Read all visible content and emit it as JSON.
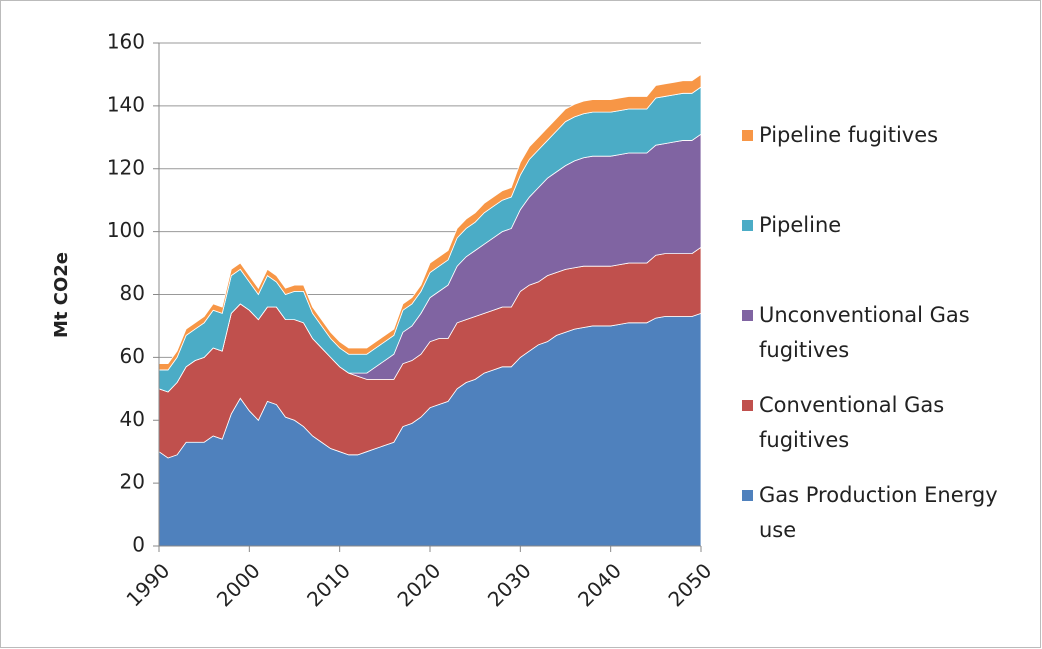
{
  "chart_data": {
    "type": "stacked-area",
    "ylabel": "Mt CO2e",
    "x": [
      1990,
      1991,
      1992,
      1993,
      1994,
      1995,
      1996,
      1997,
      1998,
      1999,
      2000,
      2001,
      2002,
      2003,
      2004,
      2005,
      2006,
      2007,
      2008,
      2009,
      2010,
      2011,
      2012,
      2013,
      2014,
      2015,
      2016,
      2017,
      2018,
      2019,
      2020,
      2021,
      2022,
      2023,
      2024,
      2025,
      2026,
      2027,
      2028,
      2029,
      2030,
      2031,
      2032,
      2033,
      2034,
      2035,
      2036,
      2037,
      2038,
      2039,
      2040,
      2041,
      2042,
      2043,
      2044,
      2045,
      2046,
      2047,
      2048,
      2049,
      2050
    ],
    "series": [
      {
        "name": "Gas Production Energy use",
        "color": "#4f81bd",
        "values": [
          30,
          28,
          29,
          33,
          33,
          33,
          35,
          34,
          42,
          47,
          43,
          40,
          46,
          45,
          41,
          40,
          38,
          35,
          33,
          31,
          30,
          29,
          29,
          30,
          31,
          32,
          33,
          38,
          39,
          41,
          44,
          45,
          46,
          50,
          52,
          53,
          55,
          56,
          57,
          57,
          60,
          62,
          64,
          65,
          67,
          68,
          69,
          69.5,
          70,
          70,
          70,
          70.5,
          71,
          71,
          71,
          72.5,
          73,
          73,
          73,
          73,
          74
        ]
      },
      {
        "name": "Conventional Gas fugitives",
        "color": "#c0504d",
        "values": [
          20,
          21,
          23,
          24,
          26,
          27,
          28,
          28,
          32,
          30,
          32,
          32,
          30,
          31,
          31,
          32,
          33,
          31,
          30,
          29,
          27,
          26,
          25,
          23,
          22,
          21,
          20,
          20,
          20,
          20,
          21,
          21,
          20,
          21,
          20,
          20,
          19,
          19,
          19,
          19,
          21,
          21,
          20,
          21,
          20,
          20,
          19.5,
          19.5,
          19,
          19,
          19,
          19,
          19,
          19,
          19,
          20,
          20,
          20,
          20,
          20,
          21
        ]
      },
      {
        "name": "Unconventional Gas fugitives",
        "color": "#8064a2",
        "values": [
          0,
          0,
          0,
          0,
          0,
          0,
          0,
          0,
          0,
          0,
          0,
          0,
          0,
          0,
          0,
          0,
          0,
          0,
          0,
          0,
          0,
          0,
          1,
          2,
          4,
          6,
          8,
          10,
          11,
          13,
          14,
          15,
          17,
          18,
          20,
          21,
          22,
          23,
          24,
          25,
          26,
          28,
          30,
          31,
          32,
          33,
          34,
          34.5,
          35,
          35,
          35,
          35,
          35,
          35,
          35,
          35,
          35,
          35.5,
          36,
          36,
          36
        ]
      },
      {
        "name": "Pipeline",
        "color": "#4bacc6",
        "values": [
          6,
          7,
          8,
          10,
          10,
          11,
          12,
          12,
          12,
          11,
          9,
          8,
          10,
          8,
          8,
          9,
          10,
          8,
          7,
          6,
          6,
          6,
          6,
          6,
          6,
          6,
          6,
          7,
          7,
          7,
          8,
          8,
          8,
          9,
          9,
          9,
          10,
          10,
          10,
          10,
          11,
          12,
          12,
          12,
          13,
          14,
          14,
          14,
          14,
          14,
          14,
          14,
          14,
          14,
          14,
          15,
          15,
          15,
          15,
          15,
          15
        ]
      },
      {
        "name": "Pipeline fugitives",
        "color": "#f79646",
        "values": [
          2,
          2,
          2,
          2,
          2,
          2,
          2,
          2,
          2,
          2,
          2,
          2,
          2,
          2,
          2,
          2,
          2,
          2,
          2,
          2,
          2,
          2,
          2,
          2,
          2,
          2,
          2,
          2,
          2,
          2,
          3,
          3,
          3,
          3,
          3,
          3,
          3,
          3,
          3,
          3,
          4,
          4,
          4,
          4,
          4,
          4,
          4,
          4,
          4,
          4,
          4,
          4,
          4,
          4,
          4,
          4,
          4,
          4,
          4,
          4,
          4
        ]
      }
    ],
    "xlim": [
      1990,
      2050
    ],
    "xticks": [
      1990,
      2000,
      2010,
      2020,
      2030,
      2040,
      2050
    ],
    "ylim": [
      0,
      160
    ],
    "yticks": [
      0,
      20,
      40,
      60,
      80,
      100,
      120,
      140,
      160
    ],
    "grid": true,
    "legend": "right"
  }
}
